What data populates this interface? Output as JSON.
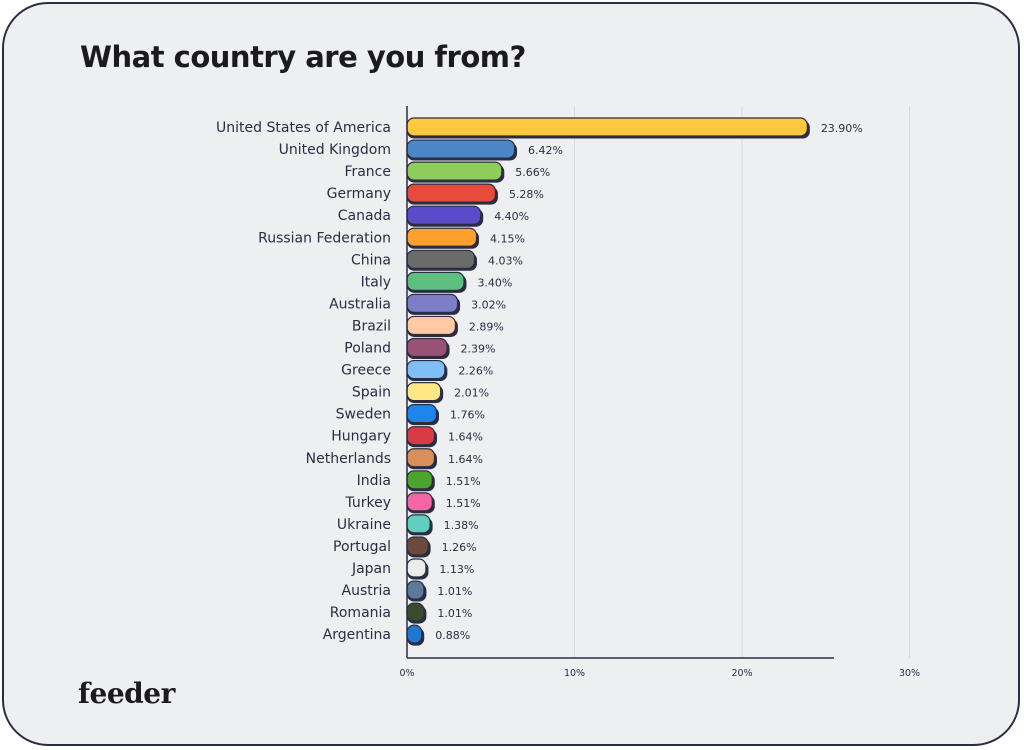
{
  "brand": "feeder",
  "chart_data": {
    "type": "bar",
    "orientation": "horizontal",
    "title": "What country are you from?",
    "xlabel": "",
    "ylabel": "",
    "xlim": [
      0,
      30
    ],
    "x_ticks": [
      0,
      10,
      20,
      30
    ],
    "x_tick_labels": [
      "0%",
      "10%",
      "20%",
      "30%"
    ],
    "grid": true,
    "categories": [
      "United States of America",
      "United Kingdom",
      "France",
      "Germany",
      "Canada",
      "Russian Federation",
      "China",
      "Italy",
      "Australia",
      "Brazil",
      "Poland",
      "Greece",
      "Spain",
      "Sweden",
      "Hungary",
      "Netherlands",
      "India",
      "Turkey",
      "Ukraine",
      "Portugal",
      "Japan",
      "Austria",
      "Romania",
      "Argentina"
    ],
    "values": [
      23.9,
      6.42,
      5.66,
      5.28,
      4.4,
      4.15,
      4.03,
      3.4,
      3.02,
      2.89,
      2.39,
      2.26,
      2.01,
      1.76,
      1.64,
      1.64,
      1.51,
      1.51,
      1.38,
      1.26,
      1.13,
      1.01,
      1.01,
      0.88
    ],
    "value_labels": [
      "23.90%",
      "6.42%",
      "5.66%",
      "5.28%",
      "4.40%",
      "4.15%",
      "4.03%",
      "3.40%",
      "3.02%",
      "2.89%",
      "2.39%",
      "2.26%",
      "2.01%",
      "1.76%",
      "1.64%",
      "1.64%",
      "1.51%",
      "1.51%",
      "1.38%",
      "1.26%",
      "1.13%",
      "1.01%",
      "1.01%",
      "0.88%"
    ],
    "colors": [
      "#ffc83d",
      "#4a86c8",
      "#8ccd5c",
      "#e64b3c",
      "#5b4bc9",
      "#ff9f2e",
      "#6b6b6b",
      "#5dbf80",
      "#7e7ec8",
      "#ffc9a4",
      "#9a5274",
      "#7fbef7",
      "#ffe785",
      "#1c86ec",
      "#d83a46",
      "#d98f5a",
      "#4ba52b",
      "#f566a6",
      "#5fcfbf",
      "#6b4a3c",
      "#ececec",
      "#5d7a9a",
      "#3b4a2b",
      "#1f77d0"
    ]
  }
}
